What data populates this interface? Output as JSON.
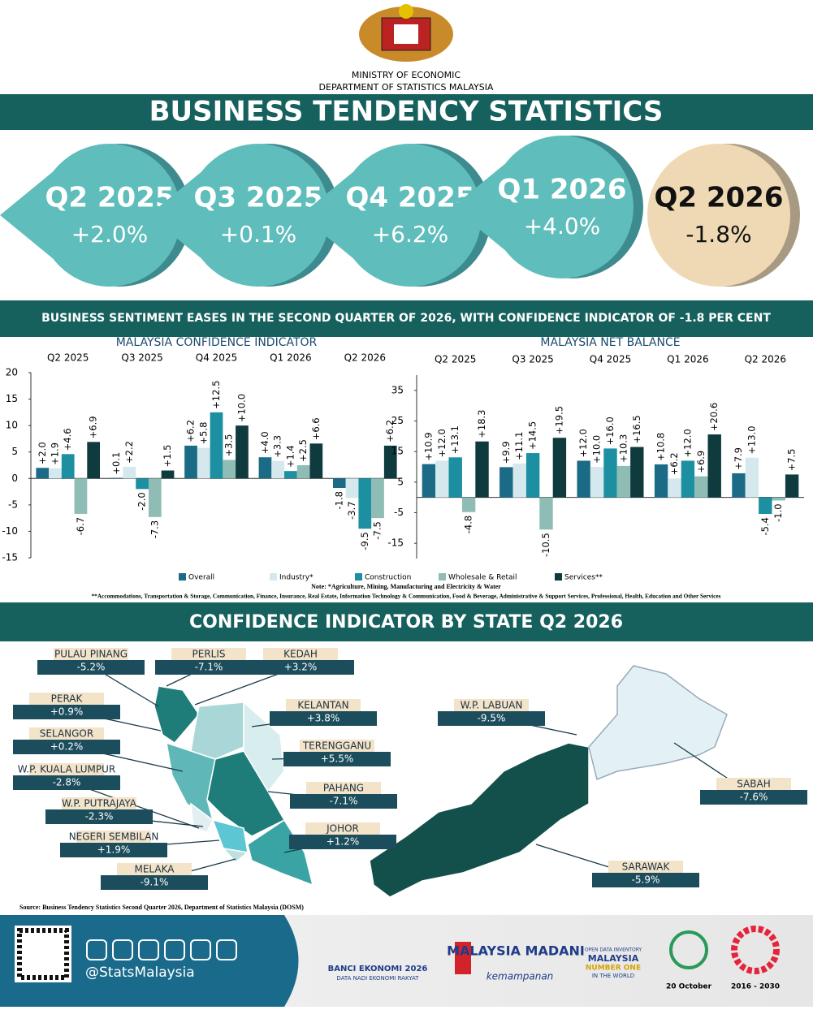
{
  "header": {
    "ministry": "MINISTRY OF ECONOMIC",
    "department": "DEPARTMENT OF STATISTICS MALAYSIA",
    "title": "BUSINESS TENDENCY STATISTICS"
  },
  "quarters": [
    {
      "quarter": "Q2 2025",
      "change": "+2.0%"
    },
    {
      "quarter": "Q3 2025",
      "change": "+0.1%"
    },
    {
      "quarter": "Q4 2025",
      "change": "+6.2%"
    },
    {
      "quarter": "Q1 2026",
      "change": "+4.0%"
    },
    {
      "quarter": "Q2 2026",
      "change": "-1.8%"
    }
  ],
  "headline": "BUSINESS SENTIMENT EASES IN THE SECOND QUARTER OF 2026, WITH CONFIDENCE INDICATOR OF -1.8 PER CENT",
  "chart_data": [
    {
      "type": "bar",
      "title": "MALAYSIA CONFIDENCE INDICATOR",
      "categories": [
        "Q2 2025",
        "Q3 2025",
        "Q4 2025",
        "Q1 2026",
        "Q2 2026"
      ],
      "series": [
        {
          "name": "Overall",
          "color": "#1b6b87",
          "values": [
            2.0,
            0.1,
            6.2,
            4.0,
            -1.8
          ],
          "value_labels": [
            "+2.0",
            "+0.1",
            "+6.2",
            "+4.0",
            "-1.8"
          ]
        },
        {
          "name": "Industry*",
          "color": "#d5e8ee",
          "values": [
            1.9,
            2.2,
            5.8,
            3.3,
            -3.7
          ],
          "value_labels": [
            "+1.9",
            "+2.2",
            "+5.8",
            "+3.3",
            "-3.7"
          ]
        },
        {
          "name": "Construction",
          "color": "#1c8fa0",
          "values": [
            4.6,
            -2.0,
            12.5,
            1.4,
            -9.5
          ],
          "value_labels": [
            "+4.6",
            "-2.0",
            "+12.5",
            "+1.4",
            "-9.5"
          ]
        },
        {
          "name": "Wholesale & Retail",
          "color": "#8fbdb5",
          "values": [
            -6.7,
            -7.3,
            3.5,
            2.5,
            -7.5
          ],
          "value_labels": [
            "-6.7",
            "-7.3",
            "+3.5",
            "+2.5",
            "-7.5"
          ]
        },
        {
          "name": "Services**",
          "color": "#0f3b3f",
          "values": [
            6.9,
            1.5,
            10.0,
            6.6,
            6.2
          ],
          "value_labels": [
            "+6.9",
            "+1.5",
            "+10.0",
            "+6.6",
            "+6.2"
          ]
        }
      ],
      "ylim": [
        -15,
        20
      ],
      "yticks": [
        -15,
        -10,
        -5,
        0,
        5,
        10,
        15,
        20
      ]
    },
    {
      "type": "bar",
      "title": "MALAYSIA NET BALANCE",
      "categories": [
        "Q2 2025",
        "Q3 2025",
        "Q4 2025",
        "Q1 2026",
        "Q2 2026"
      ],
      "series": [
        {
          "color": "#1b6b87",
          "values": [
            10.9,
            9.9,
            12.0,
            10.8,
            7.9
          ],
          "value_labels": [
            "+10.9",
            "+9.9",
            "+12.0",
            "+10.8",
            "+7.9"
          ]
        },
        {
          "color": "#d5e8ee",
          "values": [
            12.0,
            11.1,
            10.0,
            6.2,
            13.0
          ],
          "value_labels": [
            "+12.0",
            "+11.1",
            "+10.0",
            "+6.2",
            "+13.0"
          ]
        },
        {
          "color": "#1c8fa0",
          "values": [
            13.1,
            14.5,
            16.0,
            12.0,
            -5.4
          ],
          "value_labels": [
            "+13.1",
            "+14.5",
            "+16.0",
            "+12.0",
            "-5.4"
          ]
        },
        {
          "color": "#8fbdb5",
          "values": [
            -4.8,
            -10.5,
            10.3,
            6.9,
            -1.0
          ],
          "value_labels": [
            "-4.8",
            "-10.5",
            "+10.3",
            "+6.9",
            "-1.0"
          ]
        },
        {
          "color": "#0f3b3f",
          "values": [
            18.3,
            19.5,
            16.5,
            20.6,
            7.5
          ],
          "value_labels": [
            "+18.3",
            "+19.5",
            "+16.5",
            "+20.6",
            "+7.5"
          ]
        }
      ],
      "ylim": [
        -20,
        40
      ],
      "yticks": [
        -15,
        -5,
        5,
        15,
        25,
        35
      ]
    }
  ],
  "notes": [
    "Note: *Agriculture, Mining, Manufacturing and  Electricity & Water",
    "**Accommodations, Transportation & Storage, Communication, Finance, Insurance, Real Estate, Information Technology & Communication, Food & Beverage, Administrative & Support Services, Professional, Health, Education and Other Services"
  ],
  "state_title": "CONFIDENCE INDICATOR BY STATE Q2 2026",
  "states": [
    {
      "name": "PULAU PINANG",
      "value": "-5.2%"
    },
    {
      "name": "PERLIS",
      "value": "-7.1%"
    },
    {
      "name": "KEDAH",
      "value": "+3.2%"
    },
    {
      "name": "PERAK",
      "value": "+0.9%"
    },
    {
      "name": "KELANTAN",
      "value": "+3.8%"
    },
    {
      "name": "SELANGOR",
      "value": "+0.2%"
    },
    {
      "name": "TERENGGANU",
      "value": "+5.5%"
    },
    {
      "name": "W.P. KUALA LUMPUR",
      "value": "-2.8%"
    },
    {
      "name": "PAHANG",
      "value": "-7.1%"
    },
    {
      "name": "W.P. PUTRAJAYA",
      "value": "-2.3%"
    },
    {
      "name": "JOHOR",
      "value": "+1.2%"
    },
    {
      "name": "NEGERI SEMBILAN",
      "value": "+1.9%"
    },
    {
      "name": "MELAKA",
      "value": "-9.1%"
    },
    {
      "name": "W.P. LABUAN",
      "value": "-9.5%"
    },
    {
      "name": "SABAH",
      "value": "-7.6%"
    },
    {
      "name": "SARAWAK",
      "value": "-5.9%"
    }
  ],
  "source": "Source: Business Tendency Statistics Second Quarter 2026, Department of Statistics Malaysia (DOSM)",
  "footer": {
    "handle": "@StatsMalaysia",
    "banci": "BANCI EKONOMI 2026",
    "banci_sub": "DATA NADI EKONOMI RAKYAT",
    "madani": "MALAYSIA MADANI",
    "madani_sub": "kemampanan",
    "odin": "OPEN DATA INVENTORY",
    "odin_country": "MALAYSIA",
    "odin_rank": "NUMBER ONE",
    "odin_sub": "IN THE WORLD",
    "date": "20 October",
    "sdg": "2016 - 2030"
  }
}
